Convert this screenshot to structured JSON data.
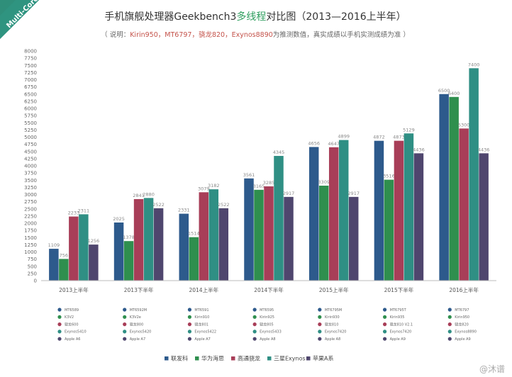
{
  "ribbon": "Multi-Core",
  "title": {
    "part1": "手机旗舰处理器Geekbench3",
    "highlight": "多线程",
    "part2": "对比图（2013—2016上半年）"
  },
  "subtitle": {
    "prefix": "（ 说明：",
    "highlight": "Kirin950，MT6797，骁龙820，Exynos8890",
    "suffix": "为推测数值，真实成绩以手机实测成绩为准 ）"
  },
  "watermark": "@沐谱",
  "colors": {
    "mediatek": "#2d5a8c",
    "huawei": "#2f8f4e",
    "qualcomm": "#a83e58",
    "samsung": "#2f8f84",
    "apple": "#4f466e"
  },
  "chart_data": {
    "type": "bar",
    "categories": [
      "2013上半年",
      "2013下半年",
      "2014上半年",
      "2014下半年",
      "2015上半年",
      "2015下半年",
      "2016上半年"
    ],
    "ylim": [
      0,
      8000
    ],
    "yticks": [
      0,
      250,
      500,
      750,
      1000,
      1250,
      1500,
      1750,
      2000,
      2250,
      2500,
      2750,
      3000,
      3250,
      3500,
      3750,
      4000,
      4250,
      4500,
      4750,
      5000,
      5250,
      5500,
      5750,
      6000,
      6250,
      6500,
      6750,
      7000,
      7250,
      7500,
      7750,
      8000
    ],
    "grid": false,
    "legend_position": "bottom",
    "series": [
      {
        "name": "联发科",
        "color": "#2d5a8c",
        "values": [
          1109,
          2025,
          2331,
          3561,
          4656,
          4872,
          6500
        ],
        "chips": [
          "MT6589",
          "MT6592M",
          "MT6591",
          "MT6595",
          "MT6795M",
          "MT6795T",
          "MT6797"
        ]
      },
      {
        "name": "华为海思",
        "color": "#2f8f4e",
        "values": [
          756,
          1378,
          1514,
          3165,
          3309,
          3516,
          6400
        ],
        "chips": [
          "K3V2",
          "K3V2e",
          "Kirin910",
          "Kirin925",
          "Kirin930",
          "Kirin935",
          "Kirin950"
        ]
      },
      {
        "name": "高通骁龙",
        "color": "#a83e58",
        "values": [
          2233,
          2841,
          3079,
          3285,
          4647,
          4873,
          5300
        ],
        "chips": [
          "骁龙600",
          "骁龙800",
          "骁龙801",
          "骁龙805",
          "骁龙810",
          "骁龙810 V2.1",
          "骁龙820"
        ]
      },
      {
        "name": "三星Exynos",
        "color": "#2f8f84",
        "values": [
          2311,
          2880,
          3182,
          4345,
          4899,
          5129,
          7400
        ],
        "chips": [
          "Exynos5410",
          "Exynos5420",
          "Exynos5422",
          "Exynos5433",
          "Exynos7420",
          "Exynos7420",
          "Exynos8890"
        ]
      },
      {
        "name": "苹果A系",
        "color": "#4f466e",
        "values": [
          1256,
          2522,
          2522,
          2917,
          2917,
          4436,
          4436
        ],
        "chips": [
          "Apple A6",
          "Apple A7",
          "Apple A7",
          "Apple A8",
          "Apple A8",
          "Apple A9",
          "Apple A9"
        ]
      }
    ]
  }
}
